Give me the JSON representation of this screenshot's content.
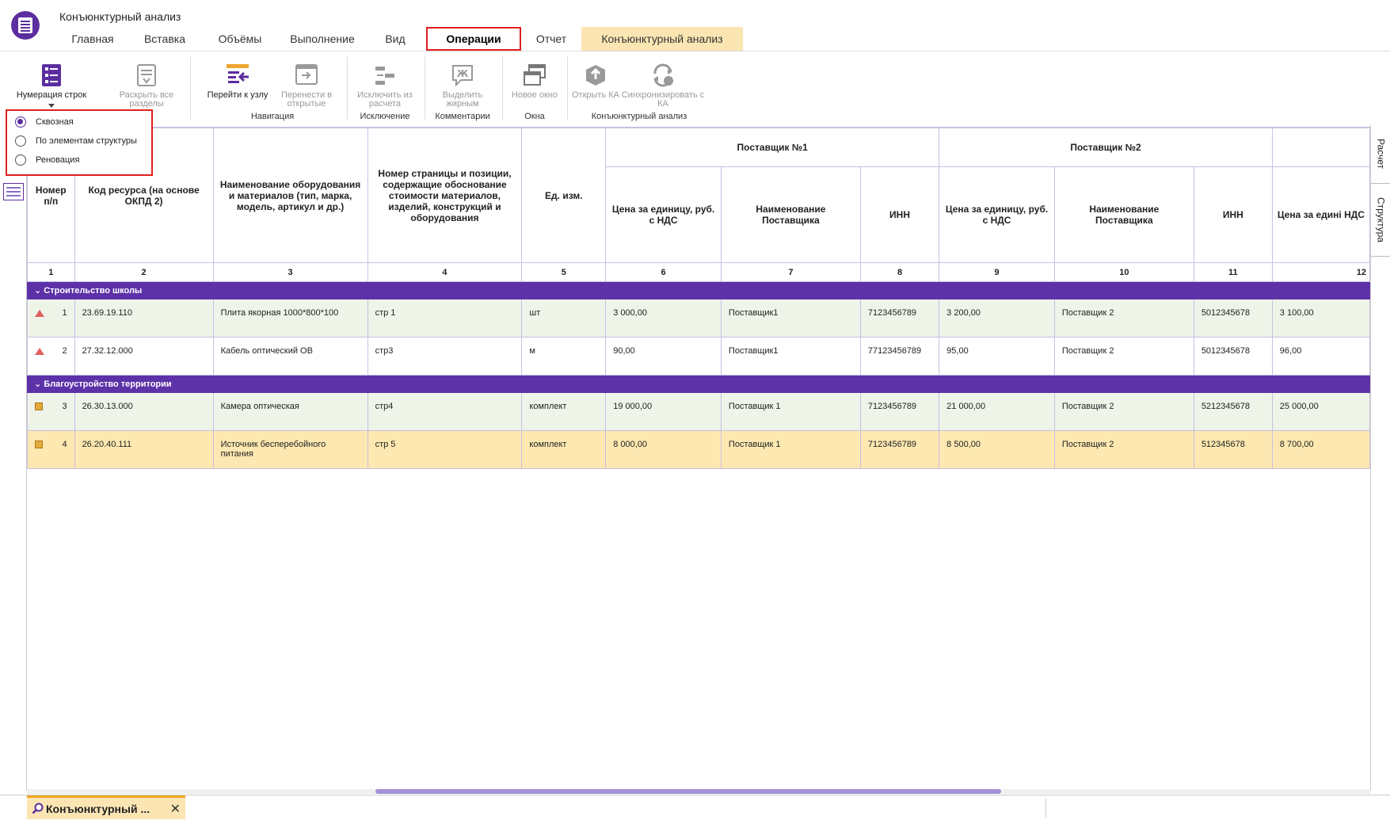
{
  "app": {
    "title": "Конъюнктурный анализ"
  },
  "menu": {
    "tabs": [
      {
        "label": "Главная"
      },
      {
        "label": "Вставка"
      },
      {
        "label": "Объёмы"
      },
      {
        "label": "Выполнение"
      },
      {
        "label": "Вид"
      },
      {
        "label": "Операции"
      },
      {
        "label": "Отчет"
      },
      {
        "label": "Конъюнктурный анализ"
      }
    ],
    "active": "Операции"
  },
  "ribbon": {
    "numbering": {
      "label": "Нумерация строк"
    },
    "expand": {
      "label": "Раскрыть все разделы"
    },
    "goto": {
      "label": "Перейти к узлу"
    },
    "move": {
      "label": "Перенести в открытые"
    },
    "exclude": {
      "label": "Исключить из расчета"
    },
    "bold": {
      "label": "Выделить жирным"
    },
    "new_window": {
      "label": "Новое окно"
    },
    "open_ka": {
      "label": "Открыть КА"
    },
    "sync_ka": {
      "label": "Синхронизировать с КА"
    },
    "groups": {
      "navigation": "Навигация",
      "exclusion": "Исключение",
      "comments": "Комментарии",
      "windows": "Окна",
      "ka": "Конъюнктурный анализ"
    }
  },
  "numbering_dropdown": {
    "options": [
      {
        "label": "Сквозная",
        "checked": true
      },
      {
        "label": "По элементам структуры",
        "checked": false
      },
      {
        "label": "Реновация",
        "checked": false
      }
    ]
  },
  "right_tabs": {
    "calc": "Расчет",
    "structure": "Структура"
  },
  "table": {
    "headers": {
      "num": "Номер п/п",
      "code": "Код ресурса (на основе ОКПД 2)",
      "name": "Наименование оборудования и материалов (тип, марка, модель, артикул и др.)",
      "page": "Номер страницы и позиции, содержащие обоснование стоимости материалов, изделий, конструкций и оборудования",
      "unit": "Ед. изм.",
      "supplier1": "Поставщик №1",
      "supplier2": "Поставщик №2",
      "price": "Цена за единицу, руб. с НДС",
      "supplier_name": "Наименование Поставщика",
      "inn": "ИНН",
      "price_cut": "Цена за едині НДС"
    },
    "col_numbers": [
      "1",
      "2",
      "3",
      "4",
      "5",
      "6",
      "7",
      "8",
      "9",
      "10",
      "11",
      "12"
    ],
    "sections": [
      {
        "title": "Строительство школы",
        "rows": [
          {
            "icon": "warning",
            "n": "1",
            "code": "23.69.19.110",
            "name": "Плита якорная 1000*800*100",
            "page": "стр 1",
            "unit": "шт",
            "p1": "3 000,00",
            "s1": "Поставщик1",
            "inn1": "7123456789",
            "p2": "3 200,00",
            "s2": "Поставщик 2",
            "inn2": "5012345678",
            "p3": "3 100,00"
          },
          {
            "icon": "warning",
            "n": "2",
            "code": "27.32.12.000",
            "name": "Кабель оптический ОВ",
            "page": "стр3",
            "unit": "м",
            "p1": "90,00",
            "s1": "Поставщик1",
            "inn1": "77123456789",
            "p2": "95,00",
            "s2": "Поставщик 2",
            "inn2": "5012345678",
            "p3": "96,00"
          }
        ]
      },
      {
        "title": "Благоустройство территории",
        "rows": [
          {
            "icon": "box",
            "n": "3",
            "code": "26.30.13.000",
            "name": "Камера оптическая",
            "page": "стр4",
            "unit": "комплект",
            "p1": "19 000,00",
            "s1": "Поставщик 1",
            "inn1": "7123456789",
            "p2": "21 000,00",
            "s2": "Поставщик 2",
            "inn2": "5212345678",
            "p3": "25 000,00"
          },
          {
            "icon": "box",
            "n": "4",
            "code": "26.20.40.111",
            "name": "Источник бесперебойного питания",
            "page": "стр 5",
            "unit": "комплект",
            "p1": "8 000,00",
            "s1": "Поставщик 1",
            "inn1": "7123456789",
            "p2": "8 500,00",
            "s2": "Поставщик 2",
            "inn2": "512345678",
            "p3": "8 700,00"
          }
        ]
      }
    ]
  },
  "bottom_tabs": [
    {
      "label": "Конъюнктурный ..."
    }
  ],
  "colors": {
    "accent": "#5d31a8",
    "highlight": "#e0201f",
    "tab_ka": "#fbe6b3",
    "row_green": "#eef4e8",
    "row_yellow": "#fce8b0"
  }
}
